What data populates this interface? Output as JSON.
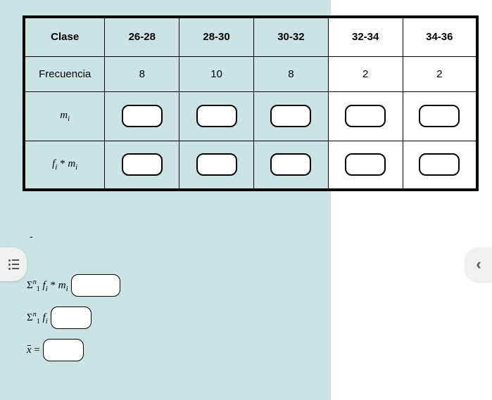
{
  "table": {
    "headers": [
      "Clase",
      "26-28",
      "28-30",
      "30-32",
      "32-34",
      "34-36"
    ],
    "rows": [
      {
        "label": "Frecuencia",
        "type": "text",
        "values": [
          "8",
          "10",
          "8",
          "2",
          "2"
        ]
      },
      {
        "label_html": "m_i",
        "type": "input",
        "values": [
          "",
          "",
          "",
          "",
          ""
        ]
      },
      {
        "label_html": "f_i * m_i",
        "type": "input",
        "values": [
          "",
          "",
          "",
          "",
          ""
        ]
      }
    ],
    "tinted_columns": [
      0,
      1,
      2,
      3
    ],
    "colors": {
      "tint": "#cce3e3",
      "border": "#000000",
      "bg": "#ffffff"
    }
  },
  "dash": "-",
  "formulas": {
    "sum_fm": {
      "value": ""
    },
    "sum_f": {
      "value": ""
    },
    "xbar": {
      "value": ""
    }
  },
  "nav": {
    "menu_aria": "menu",
    "next_aria": "next",
    "next_glyph": "‹"
  }
}
